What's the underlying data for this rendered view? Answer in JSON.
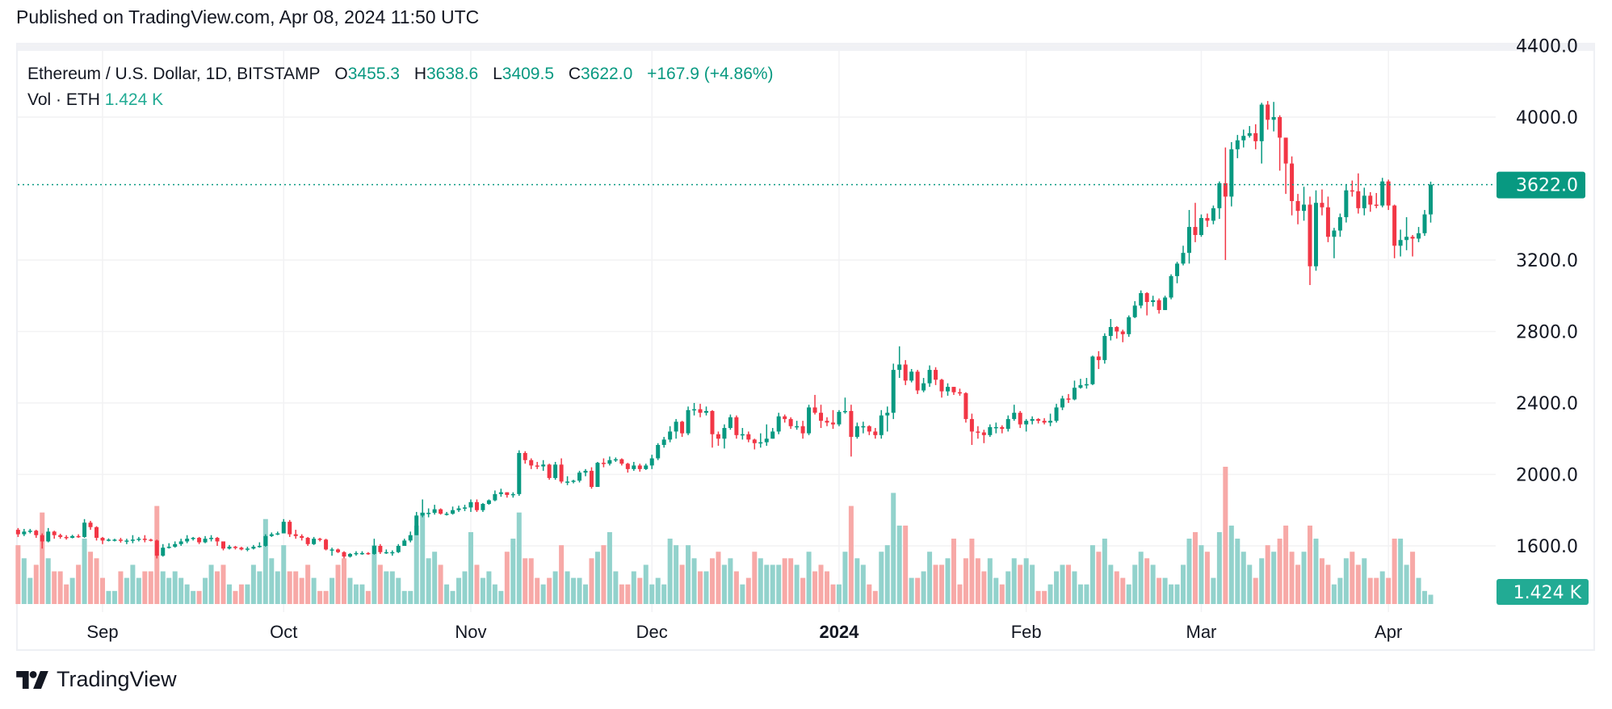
{
  "header": {
    "published": "Published on TradingView.com, Apr 08, 2024 11:50 UTC"
  },
  "legend": {
    "symbol": "Ethereum / U.S. Dollar, 1D, BITSTAMP",
    "o_label": "O",
    "o": "3455.3",
    "h_label": "H",
    "h": "3638.6",
    "l_label": "L",
    "l": "3409.5",
    "c_label": "C",
    "c": "3622.0",
    "change": "+167.9 (+4.86%)",
    "vol_label": "Vol · ETH",
    "vol": "1.424 K"
  },
  "footer": {
    "brand": "TradingView",
    "logo_icon": "tradingview-logo-icon"
  },
  "colors": {
    "up": "#089981",
    "down": "#f23645",
    "vol_up": "#92d2cc",
    "vol_down": "#f7a9a7",
    "vol_badge": "#22ab94",
    "grid": "#f2f2f4"
  },
  "chart_data": {
    "type": "candlestick",
    "interval": "1D",
    "x_range": [
      "2023-08-18",
      "2024-04-08"
    ],
    "x_tick_labels": [
      {
        "label": "Sep",
        "date": "2023-09-01"
      },
      {
        "label": "Oct",
        "date": "2023-10-01"
      },
      {
        "label": "Nov",
        "date": "2023-11-01"
      },
      {
        "label": "Dec",
        "date": "2023-12-01"
      },
      {
        "label": "2024",
        "date": "2024-01-01",
        "bold": true
      },
      {
        "label": "Feb",
        "date": "2024-02-01"
      },
      {
        "label": "Mar",
        "date": "2024-03-01"
      },
      {
        "label": "Apr",
        "date": "2024-04-01"
      }
    ],
    "y_ticks": [
      "4400.0",
      "4000.0",
      "3200.0",
      "2800.0",
      "2400.0",
      "2000.0",
      "1600.0"
    ],
    "y_tick_values": [
      4400,
      4000,
      3200,
      2800,
      2400,
      2000,
      1600
    ],
    "ylim": [
      1550,
      4420
    ],
    "grid": true,
    "last_price": 3622.0,
    "last_price_label": "3622.0",
    "last_volume_label": "1.424 K",
    "volume_unit": "K ETH",
    "first_open": 1690,
    "close": [
      1665,
      1680,
      1685,
      1660,
      1625,
      1680,
      1660,
      1650,
      1645,
      1655,
      1650,
      1730,
      1705,
      1645,
      1630,
      1635,
      1635,
      1630,
      1630,
      1635,
      1640,
      1635,
      1630,
      1545,
      1590,
      1595,
      1610,
      1625,
      1640,
      1645,
      1620,
      1640,
      1645,
      1625,
      1585,
      1595,
      1590,
      1580,
      1585,
      1595,
      1600,
      1655,
      1665,
      1670,
      1735,
      1665,
      1655,
      1645,
      1610,
      1640,
      1635,
      1580,
      1580,
      1565,
      1540,
      1555,
      1560,
      1560,
      1555,
      1600,
      1565,
      1565,
      1565,
      1600,
      1630,
      1660,
      1770,
      1785,
      1785,
      1805,
      1780,
      1780,
      1800,
      1810,
      1815,
      1845,
      1800,
      1835,
      1855,
      1890,
      1900,
      1885,
      1890,
      2120,
      2080,
      2050,
      2045,
      2055,
      1980,
      2055,
      1960,
      1960,
      1965,
      2010,
      2020,
      1930,
      2065,
      2060,
      2080,
      2085,
      2060,
      2030,
      2050,
      2030,
      2050,
      2090,
      2165,
      2195,
      2240,
      2295,
      2230,
      2360,
      2365,
      2345,
      2355,
      2225,
      2200,
      2260,
      2320,
      2220,
      2225,
      2195,
      2175,
      2180,
      2200,
      2240,
      2325,
      2310,
      2270,
      2270,
      2230,
      2375,
      2345,
      2300,
      2290,
      2280,
      2350,
      2355,
      2210,
      2270,
      2270,
      2240,
      2220,
      2330,
      2345,
      2585,
      2615,
      2525,
      2575,
      2470,
      2510,
      2585,
      2530,
      2465,
      2490,
      2460,
      2455,
      2310,
      2240,
      2235,
      2220,
      2265,
      2265,
      2255,
      2310,
      2345,
      2280,
      2300,
      2310,
      2300,
      2290,
      2300,
      2375,
      2425,
      2420,
      2485,
      2500,
      2505,
      2660,
      2640,
      2775,
      2825,
      2800,
      2785,
      2880,
      2945,
      3015,
      2965,
      2975,
      2920,
      2990,
      3110,
      3180,
      3240,
      3385,
      3340,
      3435,
      3420,
      3490,
      3630,
      3555,
      3820,
      3870,
      3895,
      3910,
      3865,
      4070,
      3985,
      4000,
      3885,
      3740,
      3530,
      3475,
      3510,
      3165,
      3520,
      3495,
      3330,
      3365,
      3440,
      3590,
      3585,
      3490,
      3560,
      3510,
      3505,
      3640,
      3505,
      3280,
      3312,
      3330,
      3320,
      3350,
      3455.3,
      3622.0
    ],
    "high": [
      1700,
      1695,
      1695,
      1690,
      1670,
      1700,
      1685,
      1668,
      1660,
      1662,
      1665,
      1750,
      1740,
      1710,
      1650,
      1642,
      1640,
      1645,
      1640,
      1660,
      1650,
      1660,
      1640,
      1635,
      1610,
      1615,
      1625,
      1640,
      1660,
      1650,
      1650,
      1655,
      1660,
      1650,
      1625,
      1605,
      1600,
      1595,
      1595,
      1605,
      1620,
      1665,
      1675,
      1680,
      1750,
      1745,
      1690,
      1665,
      1650,
      1650,
      1645,
      1640,
      1590,
      1585,
      1570,
      1560,
      1570,
      1570,
      1565,
      1640,
      1610,
      1580,
      1575,
      1610,
      1640,
      1680,
      1790,
      1860,
      1810,
      1830,
      1810,
      1790,
      1820,
      1825,
      1830,
      1860,
      1860,
      1840,
      1860,
      1910,
      1920,
      1900,
      1900,
      2135,
      2130,
      2090,
      2070,
      2080,
      2060,
      2070,
      2090,
      1990,
      1970,
      2020,
      2030,
      2040,
      2070,
      2090,
      2100,
      2095,
      2090,
      2065,
      2070,
      2060,
      2060,
      2110,
      2175,
      2210,
      2270,
      2310,
      2300,
      2380,
      2400,
      2395,
      2380,
      2360,
      2240,
      2280,
      2335,
      2330,
      2260,
      2240,
      2200,
      2230,
      2280,
      2260,
      2345,
      2335,
      2320,
      2300,
      2300,
      2390,
      2445,
      2390,
      2320,
      2360,
      2360,
      2430,
      2390,
      2290,
      2295,
      2275,
      2260,
      2360,
      2380,
      2620,
      2717,
      2640,
      2590,
      2585,
      2540,
      2610,
      2600,
      2535,
      2510,
      2490,
      2480,
      2460,
      2340,
      2270,
      2250,
      2280,
      2290,
      2275,
      2330,
      2390,
      2355,
      2310,
      2325,
      2315,
      2315,
      2340,
      2395,
      2440,
      2450,
      2525,
      2535,
      2540,
      2665,
      2690,
      2790,
      2870,
      2830,
      2810,
      2890,
      2970,
      3030,
      3020,
      3000,
      2985,
      3000,
      3120,
      3190,
      3280,
      3480,
      3520,
      3455,
      3460,
      3505,
      3640,
      3830,
      3860,
      3900,
      3930,
      3950,
      3960,
      4080,
      4090,
      4085,
      4010,
      3885,
      3780,
      3570,
      3610,
      3555,
      3590,
      3595,
      3555,
      3380,
      3460,
      3625,
      3645,
      3685,
      3605,
      3580,
      3575,
      3660,
      3650,
      3510,
      3370,
      3440,
      3340,
      3385,
      3480,
      3638.6
    ],
    "low": [
      1650,
      1655,
      1670,
      1645,
      1585,
      1620,
      1640,
      1640,
      1635,
      1642,
      1645,
      1645,
      1690,
      1630,
      1610,
      1625,
      1625,
      1618,
      1610,
      1615,
      1625,
      1620,
      1625,
      1530,
      1540,
      1585,
      1590,
      1600,
      1615,
      1630,
      1610,
      1615,
      1625,
      1600,
      1575,
      1580,
      1580,
      1575,
      1570,
      1580,
      1590,
      1595,
      1650,
      1660,
      1670,
      1650,
      1640,
      1630,
      1600,
      1605,
      1625,
      1575,
      1545,
      1560,
      1530,
      1535,
      1545,
      1550,
      1550,
      1550,
      1555,
      1555,
      1545,
      1560,
      1600,
      1620,
      1660,
      1760,
      1760,
      1775,
      1775,
      1770,
      1775,
      1790,
      1795,
      1790,
      1790,
      1790,
      1830,
      1850,
      1875,
      1870,
      1870,
      1880,
      2060,
      2030,
      2030,
      2020,
      1970,
      1970,
      1950,
      1940,
      1950,
      1955,
      1990,
      1920,
      1930,
      2040,
      2050,
      2070,
      2050,
      2010,
      2020,
      2015,
      2025,
      2030,
      2080,
      2150,
      2180,
      2200,
      2210,
      2220,
      2330,
      2320,
      2330,
      2150,
      2160,
      2145,
      2250,
      2200,
      2195,
      2180,
      2140,
      2150,
      2160,
      2200,
      2225,
      2290,
      2255,
      2250,
      2200,
      2220,
      2335,
      2260,
      2270,
      2255,
      2270,
      2340,
      2100,
      2200,
      2230,
      2220,
      2200,
      2200,
      2240,
      2310,
      2540,
      2500,
      2515,
      2450,
      2460,
      2490,
      2500,
      2430,
      2440,
      2445,
      2440,
      2290,
      2165,
      2200,
      2175,
      2210,
      2230,
      2230,
      2240,
      2300,
      2260,
      2240,
      2280,
      2285,
      2280,
      2270,
      2290,
      2360,
      2400,
      2415,
      2480,
      2480,
      2500,
      2590,
      2620,
      2750,
      2760,
      2740,
      2770,
      2875,
      2930,
      2890,
      2940,
      2900,
      2920,
      2980,
      3070,
      3170,
      3180,
      3300,
      3330,
      3385,
      3400,
      3430,
      3200,
      3500,
      3770,
      3830,
      3885,
      3820,
      3740,
      3930,
      3920,
      3700,
      3570,
      3450,
      3400,
      3420,
      3060,
      3140,
      3450,
      3300,
      3210,
      3330,
      3410,
      3555,
      3460,
      3450,
      3470,
      3490,
      3495,
      3480,
      3210,
      3220,
      3255,
      3220,
      3300,
      3335,
      3409.5
    ],
    "volume": [
      9,
      7,
      4,
      6,
      14,
      7,
      5,
      5,
      3,
      4,
      6,
      10,
      8,
      7,
      4,
      2,
      2,
      5,
      4,
      6,
      4,
      5,
      5,
      15,
      5,
      4,
      5,
      4,
      3,
      2,
      2,
      4,
      6,
      5,
      6,
      3,
      2,
      3,
      3,
      6,
      5,
      13,
      7,
      5,
      9,
      5,
      5,
      4,
      6,
      4,
      2,
      2,
      4,
      6,
      7,
      4,
      3,
      3,
      2,
      9,
      6,
      5,
      5,
      4,
      2,
      2,
      12,
      14,
      7,
      8,
      6,
      3,
      2,
      4,
      5,
      11,
      6,
      4,
      5,
      3,
      2,
      8,
      10,
      14,
      7,
      7,
      4,
      3,
      4,
      5,
      9,
      5,
      4,
      4,
      3,
      7,
      8,
      9,
      11,
      5,
      3,
      3,
      5,
      4,
      6,
      3,
      4,
      3,
      10,
      9,
      6,
      9,
      7,
      5,
      5,
      7,
      8,
      6,
      7,
      5,
      3,
      4,
      8,
      7,
      6,
      6,
      6,
      7,
      7,
      6,
      4,
      8,
      5,
      6,
      5,
      3,
      3,
      8,
      15,
      7,
      6,
      3,
      2,
      8,
      9,
      17,
      12,
      12,
      4,
      4,
      5,
      8,
      6,
      6,
      7,
      10,
      3,
      7,
      10,
      7,
      5,
      7,
      4,
      3,
      5,
      7,
      6,
      7,
      6,
      2,
      2,
      3,
      5,
      6,
      6,
      5,
      3,
      3,
      9,
      8,
      10,
      6,
      5,
      4,
      3,
      6,
      8,
      7,
      6,
      4,
      4,
      3,
      3,
      6,
      10,
      11,
      9,
      8,
      4,
      11,
      21,
      12,
      10,
      8,
      6,
      4,
      7,
      9,
      8,
      10,
      12,
      8,
      6,
      8,
      12,
      10,
      7,
      6,
      3,
      4,
      7,
      8,
      6,
      7,
      4,
      4,
      5,
      4,
      10,
      10,
      6,
      8,
      4,
      2,
      1.424
    ]
  }
}
